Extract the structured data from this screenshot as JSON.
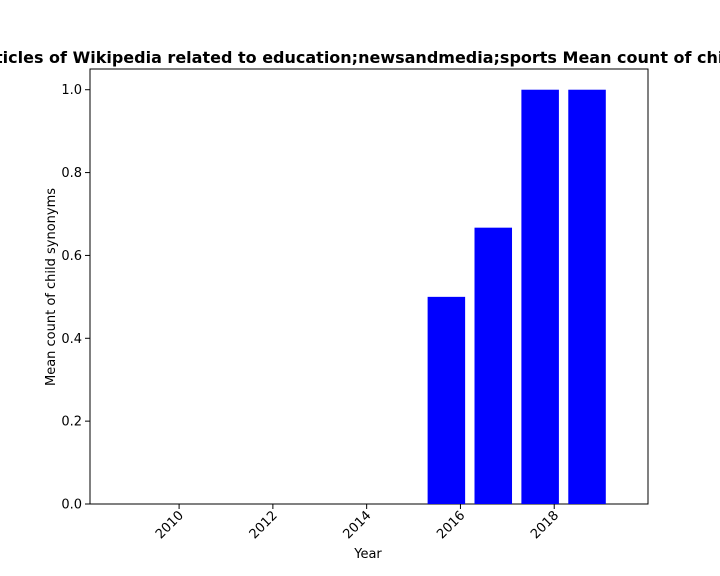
{
  "chart_data": {
    "type": "bar",
    "title": "Percentage of articles of Wikipedia related to education;newsandmedia;sports Mean count of child synonyms in p",
    "xlabel": "Year",
    "ylabel": "Mean count of child synonyms",
    "categories": [
      2015.7,
      2016.7,
      2017.7,
      2018.7
    ],
    "values": [
      0.5,
      0.667,
      1.0,
      1.0
    ],
    "xlim": [
      2008.1,
      2020.0
    ],
    "ylim": [
      0.0,
      1.05
    ],
    "xticks": [
      2010,
      2012,
      2014,
      2016,
      2018
    ],
    "yticks": [
      "0.0",
      "0.2",
      "0.4",
      "0.6",
      "0.8",
      "1.0"
    ],
    "bar_color": "#0000ff",
    "grid": false,
    "legend": "none"
  }
}
